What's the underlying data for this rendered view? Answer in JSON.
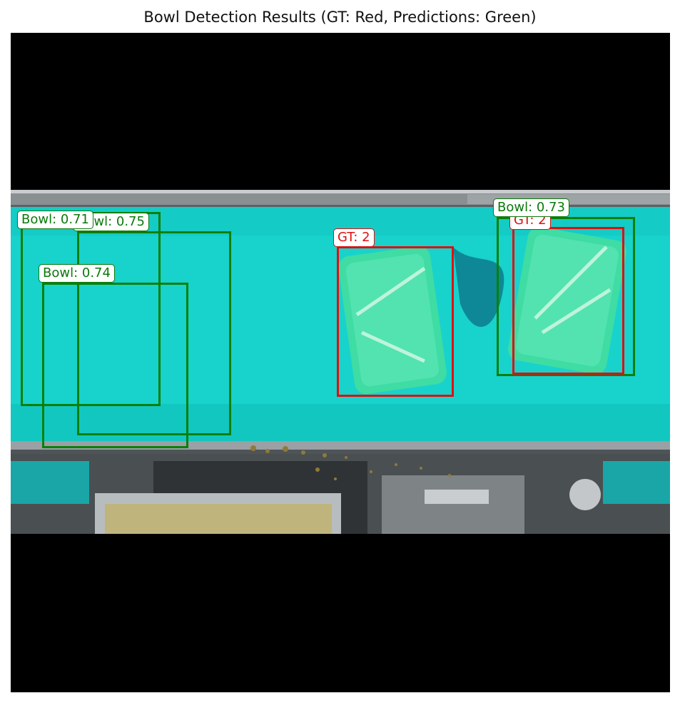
{
  "title": "Bowl Detection Results (GT: Red, Predictions: Green)",
  "legend_colors": {
    "ground_truth": "#e01010",
    "prediction": "#0a800a"
  },
  "predictions": [
    {
      "label": "Bowl: 0.71"
    },
    {
      "label": "Bowl: 0.75"
    },
    {
      "label": "Bowl: 0.74"
    },
    {
      "label": "Bowl: 0.73"
    }
  ],
  "ground_truth": [
    {
      "label": "GT: 2"
    },
    {
      "label": "GT: 2"
    }
  ]
}
